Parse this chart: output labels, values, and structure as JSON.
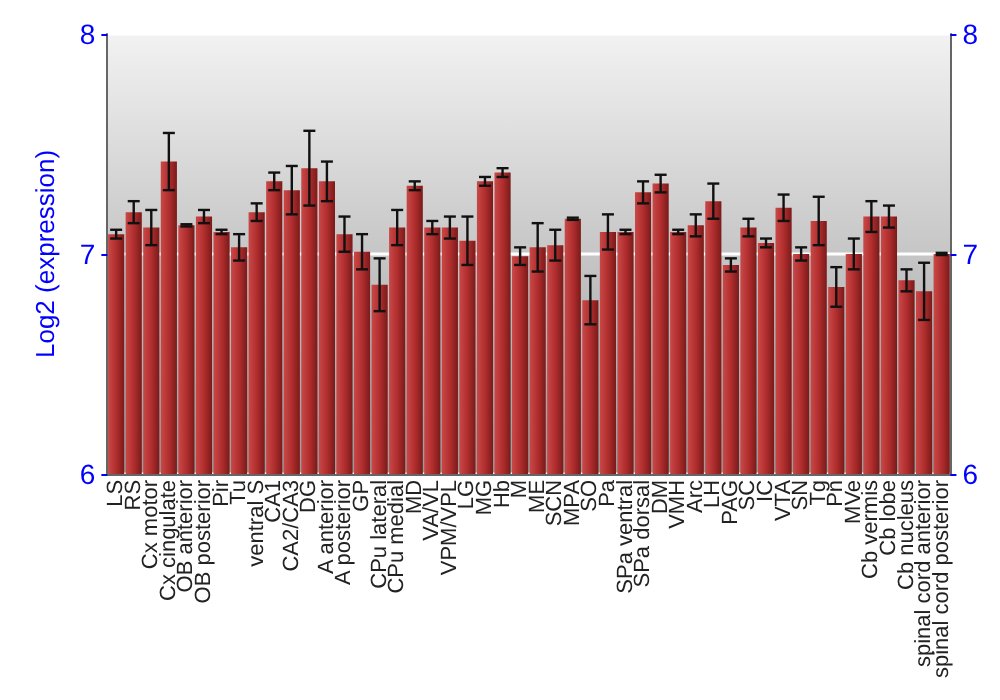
{
  "chart_data": {
    "type": "bar",
    "ylabel": "Log2 (expression)",
    "categories": [
      "LS",
      "RS",
      "Cx motor",
      "Cx cingulate",
      "OB anterior",
      "OB posterior",
      "Pir",
      "Tu",
      "ventral S",
      "CA1",
      "CA2/CA3",
      "DG",
      "A anterior",
      "A posterior",
      "GP",
      "CPu lateral",
      "CPu medial",
      "MD",
      "VA/VL",
      "VPM/VPL",
      "LG",
      "MG",
      "Hb",
      "M",
      "ME",
      "SCN",
      "MPA",
      "SO",
      "Pa",
      "SPa ventral",
      "SPa dorsal",
      "DM",
      "VMH",
      "Arc",
      "LH",
      "PAG",
      "SC",
      "IC",
      "VTA",
      "SN",
      "Tg",
      "Pn",
      "MVe",
      "Cb vermis",
      "Cb lobe",
      "Cb nucleus",
      "spinal cord anterior",
      "spinal cord posterior"
    ],
    "values": [
      7.09,
      7.19,
      7.12,
      7.42,
      7.13,
      7.17,
      7.1,
      7.03,
      7.19,
      7.33,
      7.29,
      7.39,
      7.33,
      7.09,
      7.01,
      6.86,
      7.12,
      7.31,
      7.12,
      7.12,
      7.06,
      7.33,
      7.37,
      6.99,
      7.03,
      7.04,
      7.16,
      6.79,
      7.1,
      7.1,
      7.28,
      7.32,
      7.1,
      7.13,
      7.24,
      6.95,
      7.12,
      7.05,
      7.21,
      7.0,
      7.15,
      6.85,
      7.0,
      7.17,
      7.17,
      6.88,
      6.83,
      7.0
    ],
    "errors": [
      0.02,
      0.05,
      0.08,
      0.13,
      0.005,
      0.03,
      0.01,
      0.06,
      0.04,
      0.04,
      0.11,
      0.17,
      0.09,
      0.08,
      0.08,
      0.12,
      0.08,
      0.02,
      0.03,
      0.05,
      0.11,
      0.02,
      0.02,
      0.04,
      0.11,
      0.07,
      0.005,
      0.11,
      0.08,
      0.01,
      0.05,
      0.04,
      0.01,
      0.05,
      0.08,
      0.03,
      0.04,
      0.02,
      0.06,
      0.03,
      0.11,
      0.09,
      0.07,
      0.07,
      0.05,
      0.05,
      0.13,
      0.005
    ],
    "color": "#b22e2e",
    "ylim": [
      6,
      8
    ],
    "yticks": [
      6,
      7,
      8
    ],
    "y2lim": [
      6,
      8
    ],
    "y2ticks": [
      6,
      7,
      8
    ],
    "grid": "y"
  }
}
